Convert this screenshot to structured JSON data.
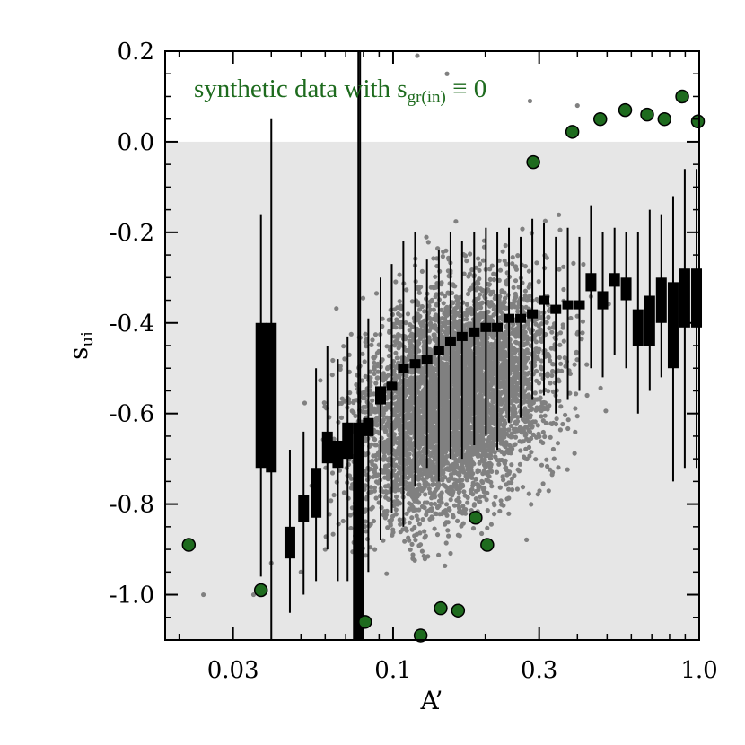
{
  "chart_data": {
    "type": "scatter",
    "title": "",
    "annotation": {
      "main": "synthetic data with s",
      "sub": "gr(in)",
      "rel": " ≡ 0"
    },
    "xlabel": "A’",
    "ylabel": {
      "main": "s",
      "sub": "ui"
    },
    "xscale": "log",
    "xlim": [
      0.018,
      1.0
    ],
    "ylim": [
      -1.1,
      0.2
    ],
    "xticks": [
      {
        "value": 0.03,
        "label": "0.03"
      },
      {
        "value": 0.1,
        "label": "0.1"
      },
      {
        "value": 0.3,
        "label": "0.3"
      },
      {
        "value": 1.0,
        "label": "1.0"
      }
    ],
    "yticks": [
      {
        "value": 0.2,
        "label": "0.2"
      },
      {
        "value": 0.0,
        "label": "0.0"
      },
      {
        "value": -0.2,
        "label": "-0.2"
      },
      {
        "value": -0.4,
        "label": "-0.4"
      },
      {
        "value": -0.6,
        "label": "-0.6"
      },
      {
        "value": -0.8,
        "label": "-0.8"
      },
      {
        "value": -1.0,
        "label": "-1.0"
      }
    ],
    "shaded_region": {
      "y_from": -1.1,
      "y_to": 0.0,
      "color": "#e6e6e6"
    },
    "reference_line_x": 0.078,
    "scatter_cloud": {
      "color": "#808080",
      "peak_x": 0.16,
      "description_points": [
        [
          0.024,
          -1.0
        ],
        [
          0.035,
          -1.0
        ],
        [
          0.04,
          -0.93
        ],
        [
          0.05,
          -0.95
        ],
        [
          0.06,
          -0.9
        ],
        [
          0.28,
          0.09
        ],
        [
          0.15,
          0.15
        ],
        [
          0.12,
          0.19
        ],
        [
          0.4,
          0.08
        ]
      ]
    },
    "box_series": {
      "color": "#000000",
      "x": [
        0.037,
        0.04,
        0.046,
        0.051,
        0.056,
        0.061,
        0.066,
        0.071,
        0.077,
        0.083,
        0.091,
        0.099,
        0.108,
        0.118,
        0.129,
        0.141,
        0.154,
        0.168,
        0.184,
        0.201,
        0.219,
        0.239,
        0.261,
        0.285,
        0.311,
        0.34,
        0.372,
        0.406,
        0.443,
        0.484,
        0.529,
        0.577,
        0.631,
        0.689,
        0.752,
        0.822,
        0.897,
        0.98
      ],
      "median": [
        -0.56,
        -0.56,
        -0.88,
        -0.81,
        -0.77,
        -0.68,
        -0.69,
        -0.66,
        -0.9,
        -0.63,
        -0.56,
        -0.54,
        -0.5,
        -0.49,
        -0.48,
        -0.46,
        -0.44,
        -0.43,
        -0.42,
        -0.41,
        -0.41,
        -0.39,
        -0.39,
        -0.38,
        -0.35,
        -0.37,
        -0.36,
        -0.36,
        -0.31,
        -0.35,
        -0.31,
        -0.33,
        -0.41,
        -0.39,
        -0.35,
        -0.41,
        -0.35,
        -0.32
      ],
      "q1": [
        -0.72,
        -0.73,
        -0.92,
        -0.84,
        -0.83,
        -0.71,
        -0.72,
        -0.7,
        -1.1,
        -0.65,
        -0.58,
        -0.55,
        -0.51,
        -0.5,
        -0.49,
        -0.47,
        -0.45,
        -0.44,
        -0.43,
        -0.42,
        -0.42,
        -0.4,
        -0.4,
        -0.39,
        -0.36,
        -0.38,
        -0.37,
        -0.37,
        -0.33,
        -0.37,
        -0.32,
        -0.35,
        -0.45,
        -0.45,
        -0.4,
        -0.5,
        -0.41,
        -0.41
      ],
      "q3": [
        -0.4,
        -0.4,
        -0.85,
        -0.78,
        -0.72,
        -0.64,
        -0.66,
        -0.62,
        -0.62,
        -0.61,
        -0.54,
        -0.53,
        -0.49,
        -0.48,
        -0.47,
        -0.45,
        -0.43,
        -0.42,
        -0.41,
        -0.4,
        -0.4,
        -0.38,
        -0.38,
        -0.37,
        -0.34,
        -0.36,
        -0.35,
        -0.35,
        -0.29,
        -0.33,
        -0.29,
        -0.3,
        -0.37,
        -0.34,
        -0.3,
        -0.31,
        -0.28,
        -0.28
      ],
      "low": [
        -0.96,
        -1.1,
        -1.04,
        -1.0,
        -0.97,
        -0.9,
        -0.97,
        -0.97,
        -1.1,
        -0.95,
        -0.88,
        -0.82,
        -0.85,
        -0.76,
        -0.72,
        -0.75,
        -0.7,
        -0.7,
        -0.67,
        -0.65,
        -0.68,
        -0.62,
        -0.61,
        -0.57,
        -0.56,
        -0.6,
        -0.57,
        -0.55,
        -0.5,
        -0.52,
        -0.47,
        -0.5,
        -0.6,
        -0.55,
        -0.52,
        -0.75,
        -0.72,
        -0.72
      ],
      "high": [
        -0.16,
        0.05,
        -0.68,
        -0.64,
        -0.5,
        -0.45,
        -0.48,
        -0.43,
        0.22,
        -0.39,
        -0.3,
        -0.27,
        -0.22,
        -0.2,
        -0.26,
        -0.24,
        -0.2,
        -0.22,
        -0.2,
        -0.19,
        -0.2,
        -0.19,
        -0.21,
        -0.17,
        -0.18,
        -0.21,
        -0.19,
        -0.21,
        -0.14,
        -0.2,
        -0.19,
        -0.2,
        -0.2,
        -0.15,
        -0.16,
        -0.12,
        -0.06,
        -0.06
      ]
    },
    "green_points": {
      "color": "#1e6b1e",
      "edge": "#000000",
      "points": [
        [
          0.0215,
          -0.89
        ],
        [
          0.037,
          -0.99
        ],
        [
          0.081,
          -1.06
        ],
        [
          0.123,
          -1.09
        ],
        [
          0.143,
          -1.03
        ],
        [
          0.163,
          -1.035
        ],
        [
          0.186,
          -0.83
        ],
        [
          0.203,
          -0.89
        ],
        [
          0.287,
          -0.045
        ],
        [
          0.385,
          0.022
        ],
        [
          0.475,
          0.05
        ],
        [
          0.573,
          0.07
        ],
        [
          0.676,
          0.06
        ],
        [
          0.77,
          0.05
        ],
        [
          0.88,
          0.1
        ],
        [
          0.99,
          0.045
        ]
      ]
    }
  }
}
